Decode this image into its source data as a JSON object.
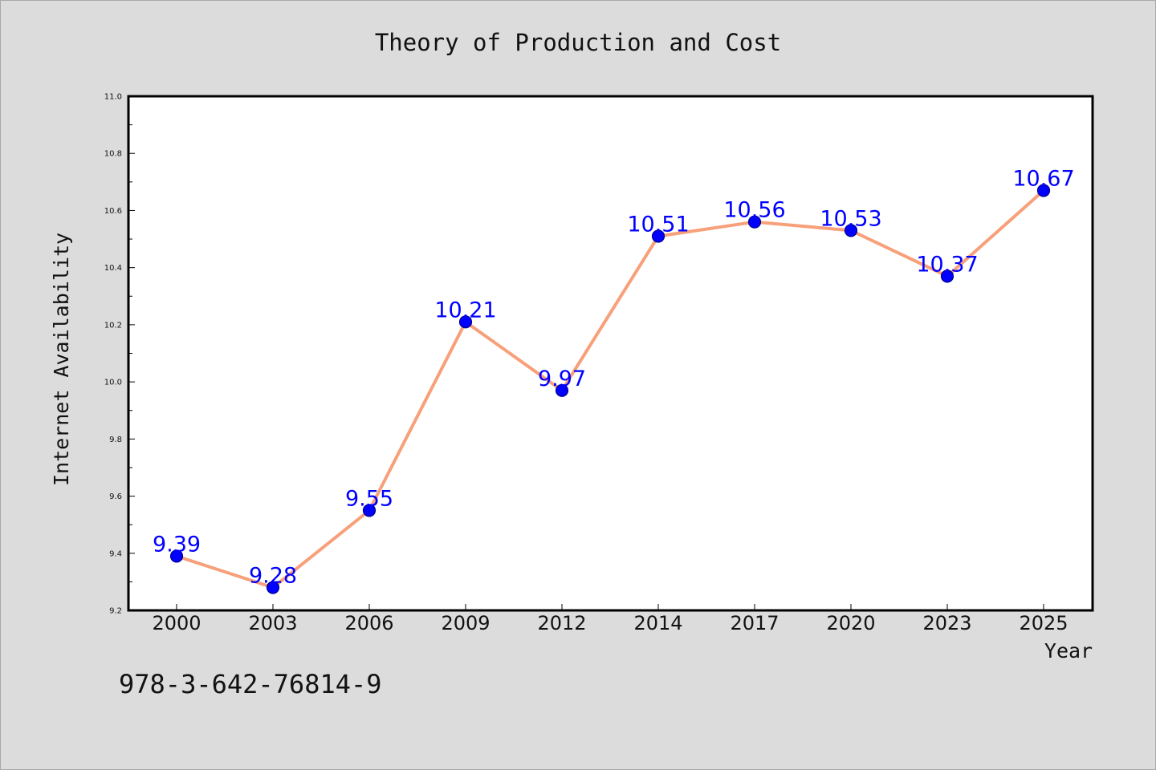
{
  "chart_data": {
    "type": "line",
    "title": "Theory of Production and Cost",
    "xlabel": "Year",
    "ylabel": "Internet Availability",
    "categories": [
      "2000",
      "2003",
      "2006",
      "2009",
      "2012",
      "2014",
      "2017",
      "2020",
      "2023",
      "2025"
    ],
    "series": [
      {
        "values": [
          9.39,
          9.28,
          9.55,
          10.21,
          9.97,
          10.51,
          10.56,
          10.53,
          10.37,
          10.67
        ],
        "labels": [
          "9.39",
          "9.28",
          "9.55",
          "10.21",
          "9.97",
          "10.51",
          "10.56",
          "10.53",
          "10.37",
          "10.67"
        ]
      }
    ],
    "ylim": [
      9.2,
      11.0
    ],
    "yticks": [
      "9.2",
      "9.4",
      "9.6",
      "9.8",
      "10.0",
      "10.2",
      "10.4",
      "10.6",
      "10.8",
      "11.0"
    ],
    "grid": false,
    "data_labels": true
  },
  "annotation": {
    "isbn": "978-3-642-76814-9"
  },
  "colors": {
    "background": "#dcdcdc",
    "plot_background": "#ffffff",
    "line": "#f7a07a",
    "marker_fill": "#0000ff",
    "marker_edge": "#00008b",
    "data_label": "#0000ff"
  }
}
